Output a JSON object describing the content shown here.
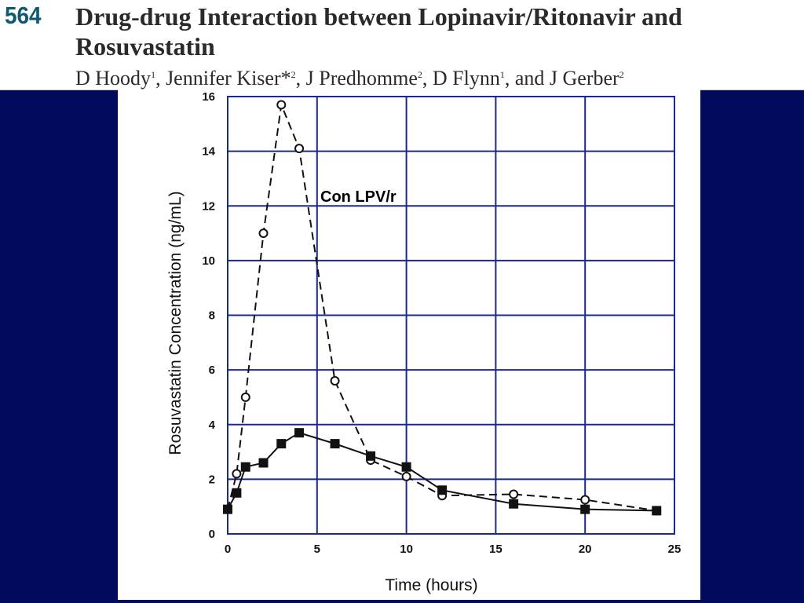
{
  "header": {
    "abstract_number": "564",
    "title": "Drug-drug Interaction between Lopinavir/Ritonavir and Rosuvastatin",
    "authors": [
      {
        "name": "D Hoody",
        "affil": "1",
        "sep": ", "
      },
      {
        "name": "Jennifer Kiser*",
        "affil": "2",
        "sep": ", "
      },
      {
        "name": "J Predhomme",
        "affil": "2",
        "sep": ", "
      },
      {
        "name": "D Flynn",
        "affil": "1",
        "sep": ", and "
      },
      {
        "name": "J Gerber",
        "affil": "2",
        "sep": ""
      }
    ]
  },
  "colors": {
    "background": "#020a5c",
    "grid": "#1a2a8c",
    "text_dark": "#2a2a2a",
    "abstract_number": "#0f5a6e"
  },
  "chart_data": {
    "type": "line",
    "title": "",
    "xlabel": "Time (hours)",
    "ylabel": "Rosuvastatin Concentration (ng/mL)",
    "xlim": [
      0,
      25
    ],
    "ylim": [
      0,
      16
    ],
    "xticks": [
      0,
      5,
      10,
      15,
      20,
      25
    ],
    "yticks": [
      0,
      2,
      4,
      6,
      8,
      10,
      12,
      14,
      16
    ],
    "grid": true,
    "annotation": "Con LPV/r",
    "series": [
      {
        "marker": "open-circle",
        "line": "dashed",
        "x": [
          0,
          0.5,
          1,
          2,
          3,
          4,
          6,
          8,
          10,
          12,
          16,
          20,
          24
        ],
        "y": [
          0.9,
          2.2,
          5.0,
          11.0,
          15.7,
          14.1,
          5.6,
          2.7,
          2.1,
          1.4,
          1.45,
          1.25,
          0.85
        ]
      },
      {
        "marker": "filled-square",
        "line": "solid",
        "x": [
          0,
          0.5,
          1,
          2,
          3,
          4,
          6,
          8,
          10,
          12,
          16,
          20,
          24
        ],
        "y": [
          0.9,
          1.5,
          2.45,
          2.6,
          3.3,
          3.7,
          3.3,
          2.85,
          2.45,
          1.6,
          1.1,
          0.9,
          0.85
        ]
      }
    ]
  }
}
